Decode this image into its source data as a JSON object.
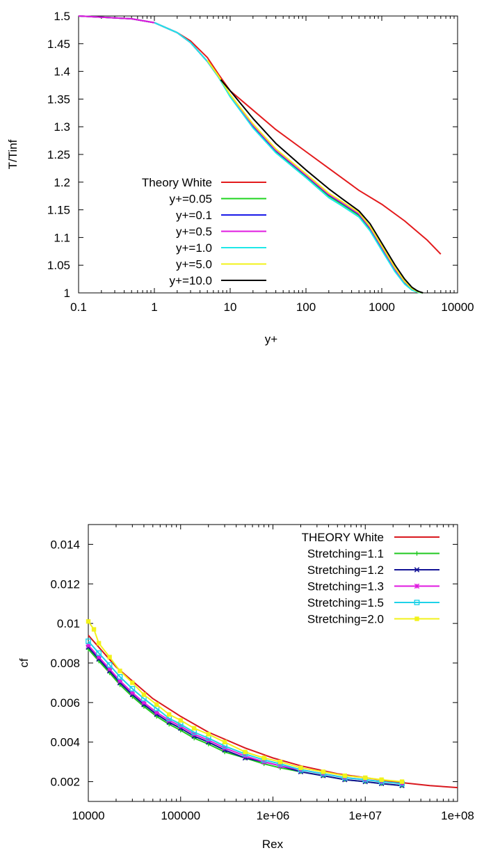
{
  "chart_data": [
    {
      "type": "line",
      "title": "",
      "xlabel": "y+",
      "ylabel": "T/Tinf",
      "xscale": "log",
      "xlim": [
        0.1,
        10000
      ],
      "ylim": [
        1,
        1.5
      ],
      "xticks": [
        "0.1",
        "1",
        "10",
        "100",
        "1000",
        "10000"
      ],
      "yticks": [
        "1",
        "1.05",
        "1.1",
        "1.15",
        "1.2",
        "1.25",
        "1.3",
        "1.35",
        "1.4",
        "1.45",
        "1.5"
      ],
      "grid": false,
      "legend_position": "bottom-left",
      "series": [
        {
          "name": "Theory White",
          "color": "#e31a1c",
          "x": [
            0.1,
            0.5,
            1,
            2,
            3,
            5,
            7,
            10,
            20,
            40,
            100,
            200,
            500,
            1000,
            2000,
            4000,
            6000
          ],
          "y": [
            1.5,
            1.495,
            1.488,
            1.47,
            1.455,
            1.425,
            1.395,
            1.365,
            1.33,
            1.295,
            1.255,
            1.225,
            1.185,
            1.16,
            1.13,
            1.095,
            1.07
          ]
        },
        {
          "name": "y+=0.05",
          "color": "#1fd41f",
          "x": [
            0.1,
            0.5,
            1,
            2,
            3,
            5,
            7,
            10,
            20,
            40,
            100,
            200,
            300,
            500,
            700,
            1000,
            1500,
            2000,
            2500,
            3000,
            3500
          ],
          "y": [
            1.5,
            1.495,
            1.488,
            1.47,
            1.452,
            1.418,
            1.39,
            1.355,
            1.3,
            1.255,
            1.21,
            1.175,
            1.16,
            1.14,
            1.115,
            1.08,
            1.04,
            1.018,
            1.006,
            1.001,
            1.0
          ]
        },
        {
          "name": "y+=0.1",
          "color": "#1a1ae8",
          "x": [
            0.1,
            0.5,
            1,
            2,
            3,
            5,
            7,
            10,
            20,
            40,
            100,
            200,
            300,
            500,
            700,
            1000,
            1500,
            2000,
            2500,
            3000,
            3500
          ],
          "y": [
            1.5,
            1.495,
            1.488,
            1.47,
            1.452,
            1.418,
            1.39,
            1.356,
            1.302,
            1.257,
            1.212,
            1.177,
            1.162,
            1.142,
            1.117,
            1.082,
            1.042,
            1.019,
            1.007,
            1.002,
            1.0
          ]
        },
        {
          "name": "y+=0.5",
          "color": "#e01ae0",
          "x": [
            0.1,
            0.5,
            1,
            2,
            3,
            5,
            7,
            10,
            20,
            40,
            100,
            200,
            300,
            500,
            700,
            1000,
            1500,
            2000,
            2500,
            3000,
            3500
          ],
          "y": [
            1.5,
            1.495,
            1.488,
            1.47,
            1.452,
            1.418,
            1.39,
            1.357,
            1.303,
            1.258,
            1.213,
            1.178,
            1.163,
            1.143,
            1.118,
            1.083,
            1.043,
            1.02,
            1.008,
            1.002,
            1.0
          ]
        },
        {
          "name": "y+=1.0",
          "color": "#1ee8e8",
          "x": [
            1,
            2,
            3,
            5,
            7,
            10,
            20,
            40,
            100,
            200,
            300,
            500,
            700,
            1000,
            1500,
            2000,
            2500,
            3000,
            3500
          ],
          "y": [
            1.488,
            1.47,
            1.452,
            1.418,
            1.39,
            1.354,
            1.298,
            1.253,
            1.208,
            1.172,
            1.157,
            1.137,
            1.112,
            1.077,
            1.038,
            1.016,
            1.005,
            1.001,
            1.0
          ]
        },
        {
          "name": "y+=5.0",
          "color": "#f2f21a",
          "x": [
            5,
            7,
            10,
            20,
            40,
            100,
            200,
            300,
            500,
            700,
            1000,
            1500,
            2000,
            2500,
            3000,
            3500
          ],
          "y": [
            1.42,
            1.392,
            1.358,
            1.305,
            1.26,
            1.215,
            1.18,
            1.165,
            1.145,
            1.12,
            1.085,
            1.045,
            1.021,
            1.008,
            1.002,
            1.0
          ]
        },
        {
          "name": "y+=10.0",
          "color": "#000000",
          "x": [
            7.5,
            10,
            20,
            40,
            100,
            200,
            300,
            500,
            700,
            1000,
            1500,
            2000,
            2500,
            3000,
            3500
          ],
          "y": [
            1.385,
            1.365,
            1.315,
            1.27,
            1.222,
            1.188,
            1.17,
            1.148,
            1.125,
            1.09,
            1.05,
            1.025,
            1.01,
            1.003,
            1.0
          ]
        }
      ]
    },
    {
      "type": "line",
      "title": "",
      "xlabel": "Rex",
      "ylabel": "cf",
      "xscale": "log",
      "xlim": [
        10000,
        100000000
      ],
      "ylim": [
        0.001,
        0.015
      ],
      "xticks": [
        "10000",
        "100000",
        "1e+06",
        "1e+07",
        "1e+08"
      ],
      "yticks": [
        "0.002",
        "0.004",
        "0.006",
        "0.008",
        "0.01",
        "0.012",
        "0.014"
      ],
      "grid": false,
      "legend_position": "top-right",
      "series": [
        {
          "name": "THEORY White",
          "color": "#d9181e",
          "marker": "none",
          "x": [
            10000,
            20000,
            50000,
            100000,
            200000,
            500000,
            1000000,
            2000000,
            5000000,
            10000000,
            20000000,
            50000000,
            100000000
          ],
          "y": [
            0.0094,
            0.0078,
            0.0062,
            0.0053,
            0.0045,
            0.0037,
            0.0032,
            0.0028,
            0.0024,
            0.0022,
            0.002,
            0.0018,
            0.0017
          ]
        },
        {
          "name": "Stretching=1.1",
          "color": "#1fc81f",
          "marker": "plus",
          "x": [
            10000,
            13000,
            17000,
            22000,
            30000,
            40000,
            55000,
            75000,
            100000,
            140000,
            200000,
            300000,
            500000,
            800000,
            1200000,
            2000000,
            3500000,
            6000000,
            10000000,
            15000000,
            25000000
          ],
          "y": [
            0.0087,
            0.0081,
            0.0075,
            0.0069,
            0.0063,
            0.0058,
            0.0053,
            0.0049,
            0.0046,
            0.0042,
            0.0039,
            0.0035,
            0.0032,
            0.0029,
            0.0027,
            0.0025,
            0.0023,
            0.0021,
            0.002,
            0.0019,
            0.0018
          ]
        },
        {
          "name": "Stretching=1.2",
          "color": "#121296",
          "marker": "x",
          "x": [
            10000,
            13000,
            17000,
            22000,
            30000,
            40000,
            55000,
            75000,
            100000,
            140000,
            200000,
            300000,
            500000,
            800000,
            1200000,
            2000000,
            3500000,
            6000000,
            10000000,
            15000000,
            25000000
          ],
          "y": [
            0.0088,
            0.0082,
            0.0076,
            0.007,
            0.0064,
            0.0059,
            0.0054,
            0.005,
            0.0047,
            0.0043,
            0.004,
            0.0036,
            0.0032,
            0.003,
            0.0028,
            0.0025,
            0.0023,
            0.0021,
            0.002,
            0.0019,
            0.0018
          ]
        },
        {
          "name": "Stretching=1.3",
          "color": "#e01ae0",
          "marker": "star",
          "x": [
            10000,
            13000,
            17000,
            22000,
            30000,
            40000,
            55000,
            75000,
            100000,
            140000,
            200000,
            300000,
            500000,
            800000,
            1200000,
            2000000,
            3500000,
            6000000,
            10000000,
            15000000,
            25000000
          ],
          "y": [
            0.0089,
            0.0083,
            0.0077,
            0.0071,
            0.0065,
            0.006,
            0.0055,
            0.0051,
            0.0048,
            0.0044,
            0.0041,
            0.0037,
            0.0033,
            0.003,
            0.0028,
            0.0026,
            0.0024,
            0.0022,
            0.0021,
            0.002,
            0.0019
          ]
        },
        {
          "name": "Stretching=1.5",
          "color": "#1ed2e8",
          "marker": "square",
          "x": [
            10000,
            13000,
            17000,
            22000,
            30000,
            40000,
            55000,
            75000,
            100000,
            140000,
            200000,
            300000,
            500000,
            800000,
            1200000,
            2000000,
            3500000,
            6000000,
            10000000,
            15000000,
            25000000
          ],
          "y": [
            0.0091,
            0.0085,
            0.0079,
            0.0073,
            0.0067,
            0.0062,
            0.0057,
            0.0052,
            0.0049,
            0.0045,
            0.0042,
            0.0038,
            0.0034,
            0.0031,
            0.0029,
            0.0026,
            0.0024,
            0.0022,
            0.0021,
            0.002,
            0.0019
          ]
        },
        {
          "name": "Stretching=2.0",
          "color": "#f2f21a",
          "marker": "filled-square",
          "x": [
            10000,
            11500,
            13000,
            17000,
            22000,
            30000,
            40000,
            55000,
            75000,
            100000,
            140000,
            200000,
            300000,
            500000,
            800000,
            1200000,
            2000000,
            3500000,
            6000000,
            10000000,
            15000000,
            25000000
          ],
          "y": [
            0.0101,
            0.0097,
            0.009,
            0.0083,
            0.0076,
            0.007,
            0.0064,
            0.0059,
            0.0054,
            0.0051,
            0.0047,
            0.0044,
            0.004,
            0.0035,
            0.0032,
            0.003,
            0.0027,
            0.0025,
            0.0023,
            0.0022,
            0.0021,
            0.002
          ]
        }
      ]
    }
  ]
}
